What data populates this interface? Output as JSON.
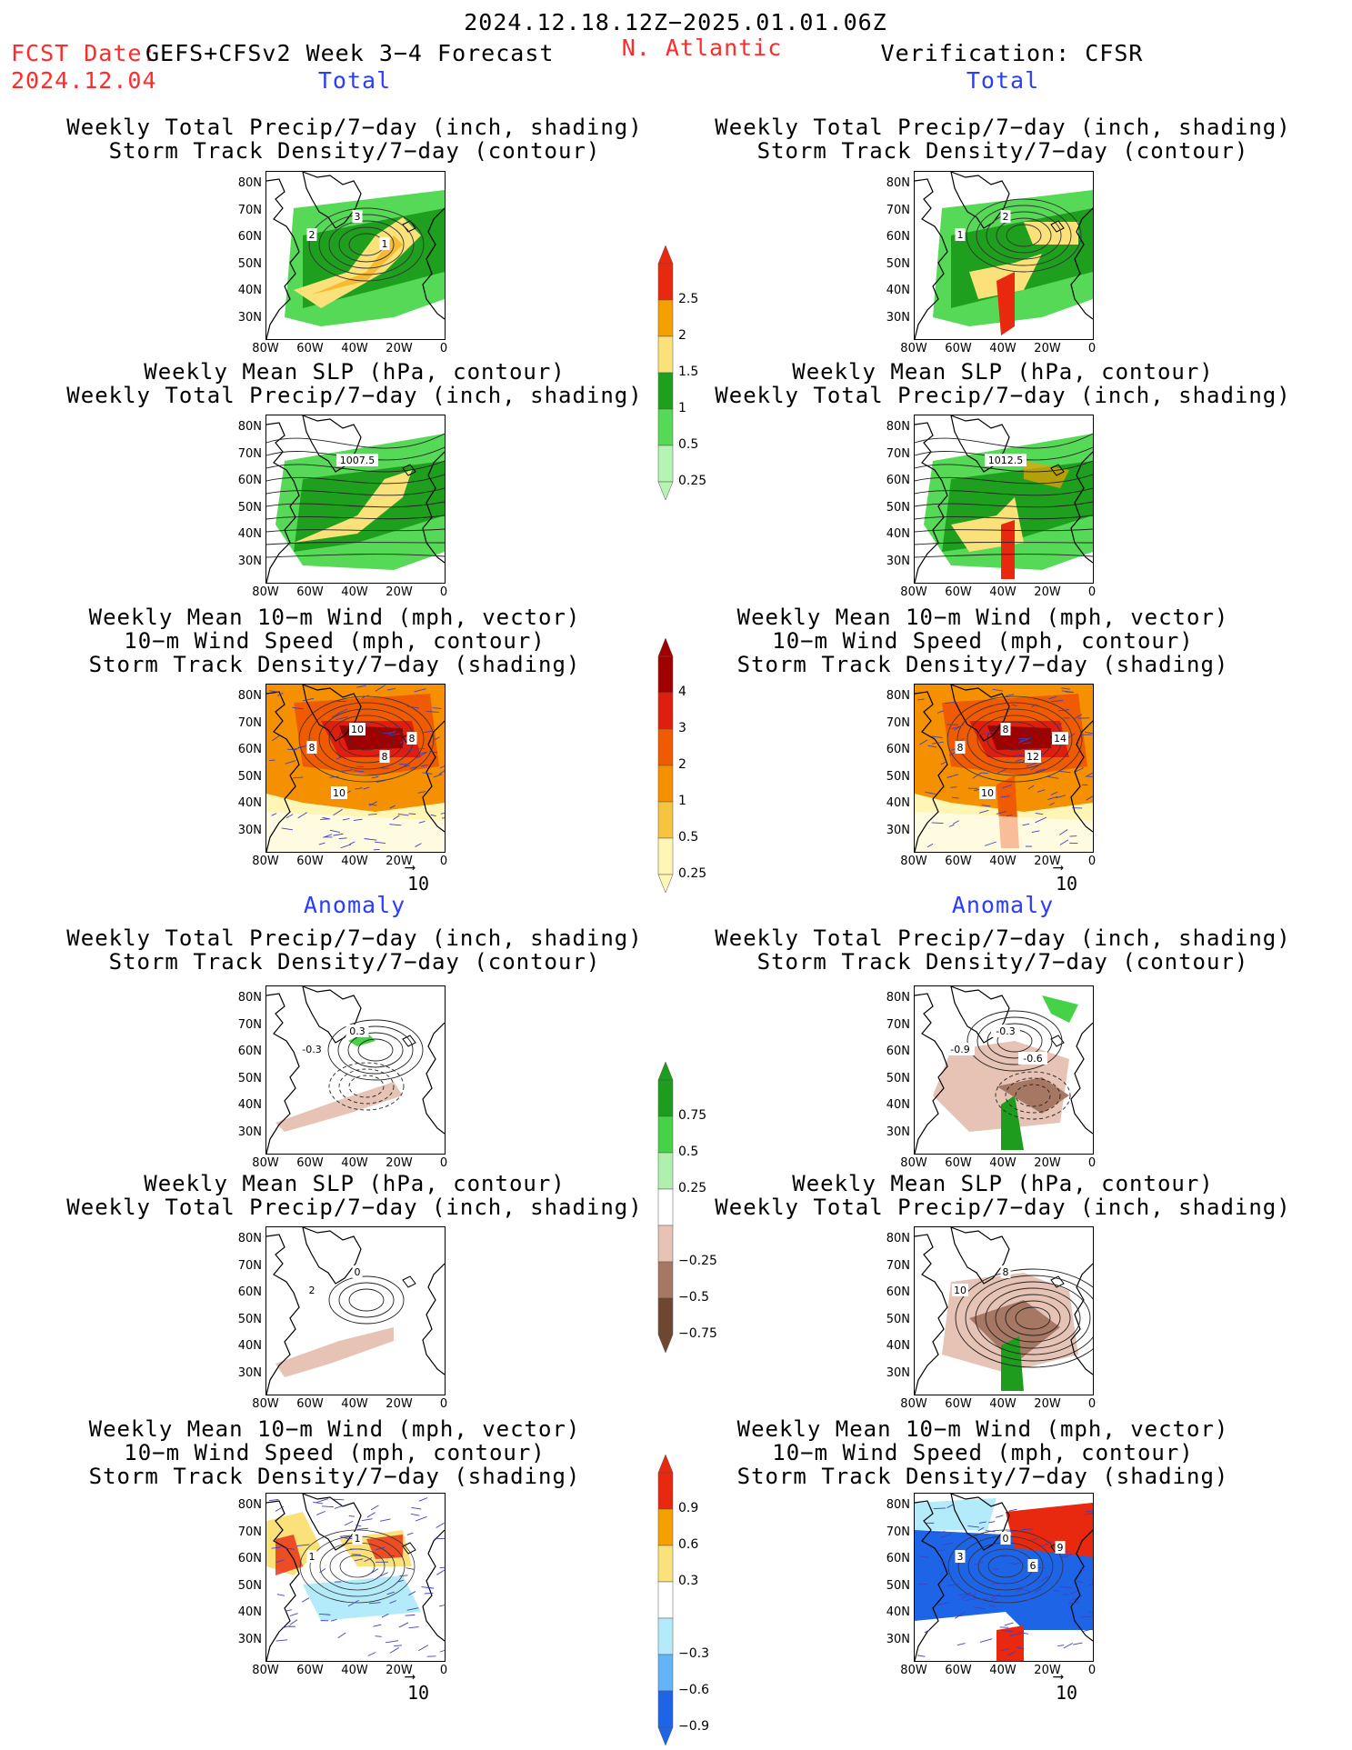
{
  "header": {
    "date_range": "2024.12.18.12Z−2025.01.01.06Z",
    "fcst_label": "FCST Date:",
    "model_label": "GEFS+CFSv2 Week 3−4 Forecast",
    "fcst_date": "2024.12.04",
    "region": "N. Atlantic",
    "verification": "Verification: CFSR"
  },
  "sections": {
    "total": "Total",
    "anomaly": "Anomaly"
  },
  "titles": {
    "precip_storm_1": "Weekly Total Precip/7−day (inch, shading)",
    "precip_storm_2": "Storm Track Density/7−day (contour)",
    "slp_1": "Weekly Mean SLP (hPa, contour)",
    "slp_2": "Weekly Total Precip/7−day (inch, shading)",
    "wind_1": "Weekly Mean 10−m Wind (mph, vector)",
    "wind_2": "10−m Wind Speed (mph, contour)",
    "wind_3": "Storm Track Density/7−day (shading)"
  },
  "axes": {
    "lat": [
      "80N",
      "70N",
      "60N",
      "50N",
      "40N",
      "30N"
    ],
    "lon": [
      "80W",
      "60W",
      "40W",
      "20W",
      "0"
    ]
  },
  "reference_vector": "10",
  "colorbars": {
    "precip_total": {
      "labels": [
        "2.5",
        "2",
        "1.5",
        "1",
        "0.5",
        "0.25"
      ],
      "colors": [
        "#e8280f",
        "#f5a000",
        "#fae17a",
        "#1ea01e",
        "#56d956",
        "#b4f5b4"
      ]
    },
    "storm_total": {
      "labels": [
        "4",
        "3",
        "2",
        "1",
        "0.5",
        "0.25"
      ],
      "colors": [
        "#a00000",
        "#e01e0f",
        "#f05a00",
        "#f59000",
        "#f7c440",
        "#fff5b4"
      ]
    },
    "precip_anom": {
      "labels": [
        "0.75",
        "0.5",
        "0.25",
        "−0.25",
        "−0.5",
        "−0.75"
      ],
      "colors": [
        "#1e9c1e",
        "#46d246",
        "#aff0af",
        "#ffffff",
        "#e6c3b4",
        "#a67864",
        "#6e4632"
      ]
    },
    "storm_anom": {
      "labels": [
        "0.9",
        "0.6",
        "0.3",
        "−0.3",
        "−0.6",
        "−0.9"
      ],
      "colors": [
        "#e8280f",
        "#f5a000",
        "#fae17a",
        "#ffffff",
        "#b4ebfa",
        "#64b4fa",
        "#1e64e6"
      ]
    }
  },
  "panel_labels": {
    "p1_left": [
      "3",
      "2",
      "1"
    ],
    "p1_right": [
      "2",
      "1"
    ],
    "p2_left": [
      "1007.5"
    ],
    "p2_right": [
      "1012.5"
    ],
    "p3_left": [
      "10",
      "8",
      "8",
      "8",
      "10"
    ],
    "p3_right": [
      "8",
      "8",
      "12",
      "14",
      "10"
    ],
    "p4_left": [
      "0.3",
      "-0.3"
    ],
    "p4_right": [
      "-0.3",
      "-0.9",
      "-0.6"
    ],
    "p5_left": [
      "0",
      "2"
    ],
    "p5_right": [
      "8",
      "10"
    ],
    "p6_left": [
      "1",
      "1"
    ],
    "p6_right": [
      "0",
      "3",
      "6",
      "9"
    ]
  }
}
